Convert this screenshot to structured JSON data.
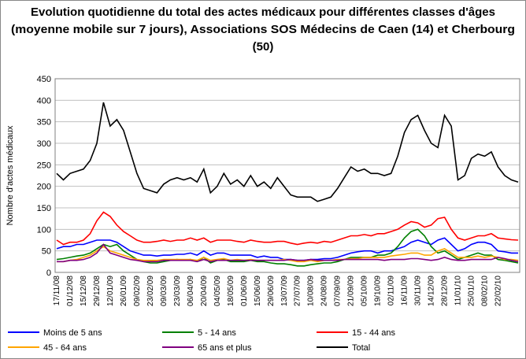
{
  "chart_data": {
    "type": "line",
    "title_lines": [
      "Evolution quotidienne du total des actes médicaux pour différentes classes d'âges",
      "(moyenne mobile sur 7 jours), Associations SOS Médecins de Caen (14) et Cherbourg",
      "(50)"
    ],
    "y_label": "Nombre d'actes médicaux",
    "categories": [
      "17/11/08",
      null,
      "01/12/08",
      null,
      "15/12/08",
      null,
      "29/12/08",
      null,
      "12/01/09",
      null,
      "26/01/09",
      null,
      "09/02/09",
      null,
      "23/02/09",
      null,
      "09/03/09",
      null,
      "23/03/09",
      null,
      "06/04/09",
      null,
      "20/04/09",
      null,
      "04/05/09",
      null,
      "18/05/09",
      null,
      "01/06/09",
      null,
      "15/06/09",
      null,
      "29/06/09",
      null,
      "13/07/09",
      null,
      "27/07/09",
      null,
      "10/08/09",
      null,
      "24/08/09",
      null,
      "07/09/09",
      null,
      "21/09/09",
      null,
      "05/10/09",
      null,
      "19/10/09",
      null,
      "02/11/09",
      null,
      "16/11/09",
      null,
      "30/11/09",
      null,
      "14/12/09",
      null,
      "28/12/09",
      null,
      "11/01/10",
      null,
      "25/01/10",
      null,
      "08/02/10",
      null,
      "22/02/10",
      null,
      null,
      null
    ],
    "series": [
      {
        "name": "Moins de 5 ans",
        "color": "#0000ff",
        "values": [
          55,
          60,
          60,
          65,
          65,
          70,
          75,
          75,
          75,
          70,
          60,
          50,
          45,
          40,
          40,
          38,
          40,
          40,
          42,
          42,
          45,
          40,
          50,
          40,
          45,
          45,
          40,
          40,
          40,
          40,
          35,
          38,
          35,
          35,
          30,
          30,
          28,
          28,
          30,
          30,
          32,
          32,
          35,
          40,
          45,
          48,
          50,
          50,
          45,
          50,
          50,
          55,
          60,
          70,
          75,
          70,
          65,
          75,
          80,
          65,
          50,
          55,
          65,
          70,
          70,
          65,
          50,
          48,
          45,
          45
        ]
      },
      {
        "name": "5 - 14 ans",
        "color": "#008000",
        "values": [
          30,
          32,
          35,
          38,
          40,
          45,
          55,
          65,
          60,
          65,
          50,
          40,
          30,
          25,
          22,
          22,
          25,
          28,
          30,
          28,
          30,
          25,
          35,
          22,
          28,
          30,
          25,
          25,
          25,
          28,
          25,
          25,
          22,
          20,
          20,
          18,
          15,
          15,
          18,
          20,
          22,
          22,
          25,
          30,
          35,
          35,
          35,
          35,
          40,
          40,
          45,
          60,
          80,
          95,
          100,
          85,
          60,
          45,
          50,
          40,
          30,
          35,
          40,
          45,
          40,
          40,
          30,
          28,
          25,
          22
        ]
      },
      {
        "name": "15 - 44 ans",
        "color": "#ff0000",
        "values": [
          75,
          65,
          70,
          70,
          75,
          90,
          120,
          140,
          130,
          110,
          95,
          85,
          75,
          70,
          70,
          72,
          75,
          72,
          75,
          75,
          80,
          75,
          80,
          70,
          75,
          75,
          75,
          72,
          70,
          75,
          72,
          70,
          70,
          72,
          72,
          68,
          65,
          68,
          70,
          68,
          72,
          70,
          75,
          80,
          85,
          85,
          88,
          85,
          90,
          90,
          95,
          100,
          110,
          118,
          115,
          105,
          110,
          125,
          128,
          100,
          80,
          75,
          80,
          85,
          85,
          90,
          80,
          78,
          76,
          75
        ]
      },
      {
        "name": "45 - 64 ans",
        "color": "#ffa500",
        "values": [
          25,
          25,
          28,
          30,
          35,
          40,
          50,
          60,
          50,
          45,
          40,
          35,
          30,
          28,
          28,
          28,
          30,
          30,
          30,
          30,
          30,
          28,
          35,
          28,
          30,
          32,
          28,
          30,
          28,
          30,
          28,
          28,
          28,
          28,
          30,
          28,
          25,
          25,
          28,
          25,
          28,
          28,
          30,
          30,
          32,
          32,
          35,
          35,
          35,
          35,
          38,
          40,
          42,
          45,
          45,
          40,
          40,
          50,
          55,
          45,
          35,
          35,
          35,
          38,
          35,
          38,
          35,
          30,
          30,
          28
        ]
      },
      {
        "name": "65 ans et plus",
        "color": "#800080",
        "values": [
          25,
          25,
          28,
          28,
          30,
          35,
          45,
          65,
          45,
          40,
          35,
          30,
          28,
          25,
          25,
          25,
          28,
          28,
          28,
          28,
          28,
          25,
          30,
          25,
          28,
          28,
          28,
          28,
          28,
          28,
          28,
          28,
          28,
          28,
          28,
          30,
          28,
          28,
          30,
          28,
          28,
          28,
          28,
          30,
          30,
          30,
          30,
          30,
          30,
          28,
          30,
          30,
          30,
          32,
          32,
          30,
          28,
          30,
          35,
          30,
          28,
          28,
          30,
          30,
          30,
          30,
          35,
          32,
          28,
          25
        ]
      },
      {
        "name": "Total",
        "color": "#000000",
        "values": [
          230,
          215,
          230,
          235,
          240,
          260,
          300,
          395,
          340,
          355,
          330,
          280,
          230,
          195,
          190,
          185,
          205,
          215,
          220,
          215,
          220,
          210,
          240,
          185,
          200,
          230,
          205,
          215,
          200,
          225,
          200,
          210,
          195,
          220,
          200,
          180,
          175,
          175,
          175,
          165,
          170,
          175,
          195,
          220,
          245,
          235,
          240,
          230,
          230,
          225,
          230,
          270,
          325,
          355,
          365,
          330,
          300,
          290,
          365,
          340,
          215,
          225,
          265,
          275,
          270,
          280,
          245,
          225,
          215,
          210
        ]
      }
    ],
    "ylim": [
      0,
      450
    ],
    "yticks": [
      0,
      50,
      100,
      150,
      200,
      250,
      300,
      350,
      400,
      450
    ],
    "grid": true
  }
}
